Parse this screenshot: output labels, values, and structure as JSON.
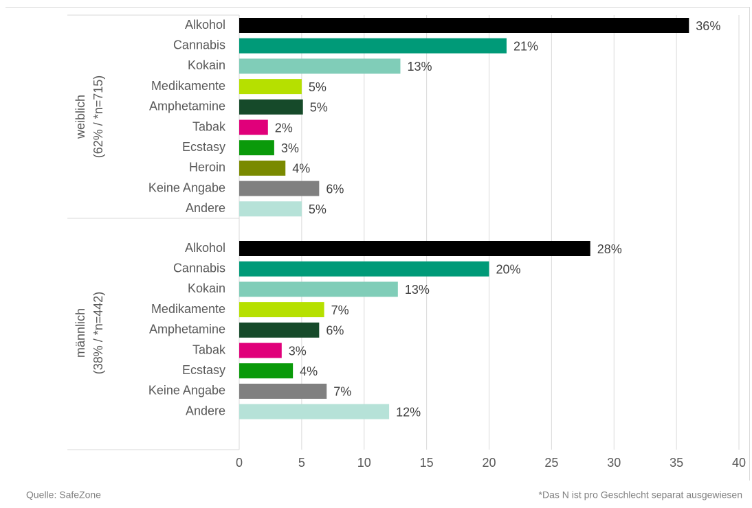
{
  "chart_data": {
    "type": "bar",
    "orientation": "horizontal",
    "xlim": [
      0,
      40
    ],
    "xticks": [
      0,
      5,
      10,
      15,
      20,
      25,
      30,
      35,
      40
    ],
    "grid": true,
    "groups": [
      {
        "label": [
          "weiblich",
          "(62% / *n=715)"
        ],
        "categories": [
          "Alkohol",
          "Cannabis",
          "Kokain",
          "Medikamente",
          "Amphetamine",
          "Tabak",
          "Ecstasy",
          "Heroin",
          "Keine Angabe",
          "Andere"
        ],
        "values": [
          36.0,
          21.4,
          12.9,
          5.0,
          5.1,
          2.3,
          2.8,
          3.7,
          6.4,
          5.0
        ],
        "value_labels": [
          "36%",
          "21%",
          "13%",
          "5%",
          "5%",
          "2%",
          "3%",
          "4%",
          "6%",
          "5%"
        ],
        "colors": [
          "#000000",
          "#009a78",
          "#80cdb8",
          "#b6e000",
          "#164a2a",
          "#e0007a",
          "#0a9a0a",
          "#7a8a00",
          "#808080",
          "#b6e2d8"
        ]
      },
      {
        "label": [
          "männlich",
          "(38% / *n=442)"
        ],
        "categories": [
          "Alkohol",
          "Cannabis",
          "Kokain",
          "Medikamente",
          "Amphetamine",
          "Tabak",
          "Ecstasy",
          "Keine Angabe",
          "Andere"
        ],
        "values": [
          28.1,
          20.0,
          12.7,
          6.8,
          6.4,
          3.4,
          4.3,
          7.0,
          12.0
        ],
        "value_labels": [
          "28%",
          "20%",
          "13%",
          "7%",
          "6%",
          "3%",
          "4%",
          "7%",
          "12%"
        ],
        "colors": [
          "#000000",
          "#009a78",
          "#80cdb8",
          "#b6e000",
          "#164a2a",
          "#e0007a",
          "#0a9a0a",
          "#808080",
          "#b6e2d8"
        ]
      }
    ],
    "source": "Quelle: SafeZone",
    "note": "*Das N ist pro Geschlecht separat ausgewiesen"
  }
}
